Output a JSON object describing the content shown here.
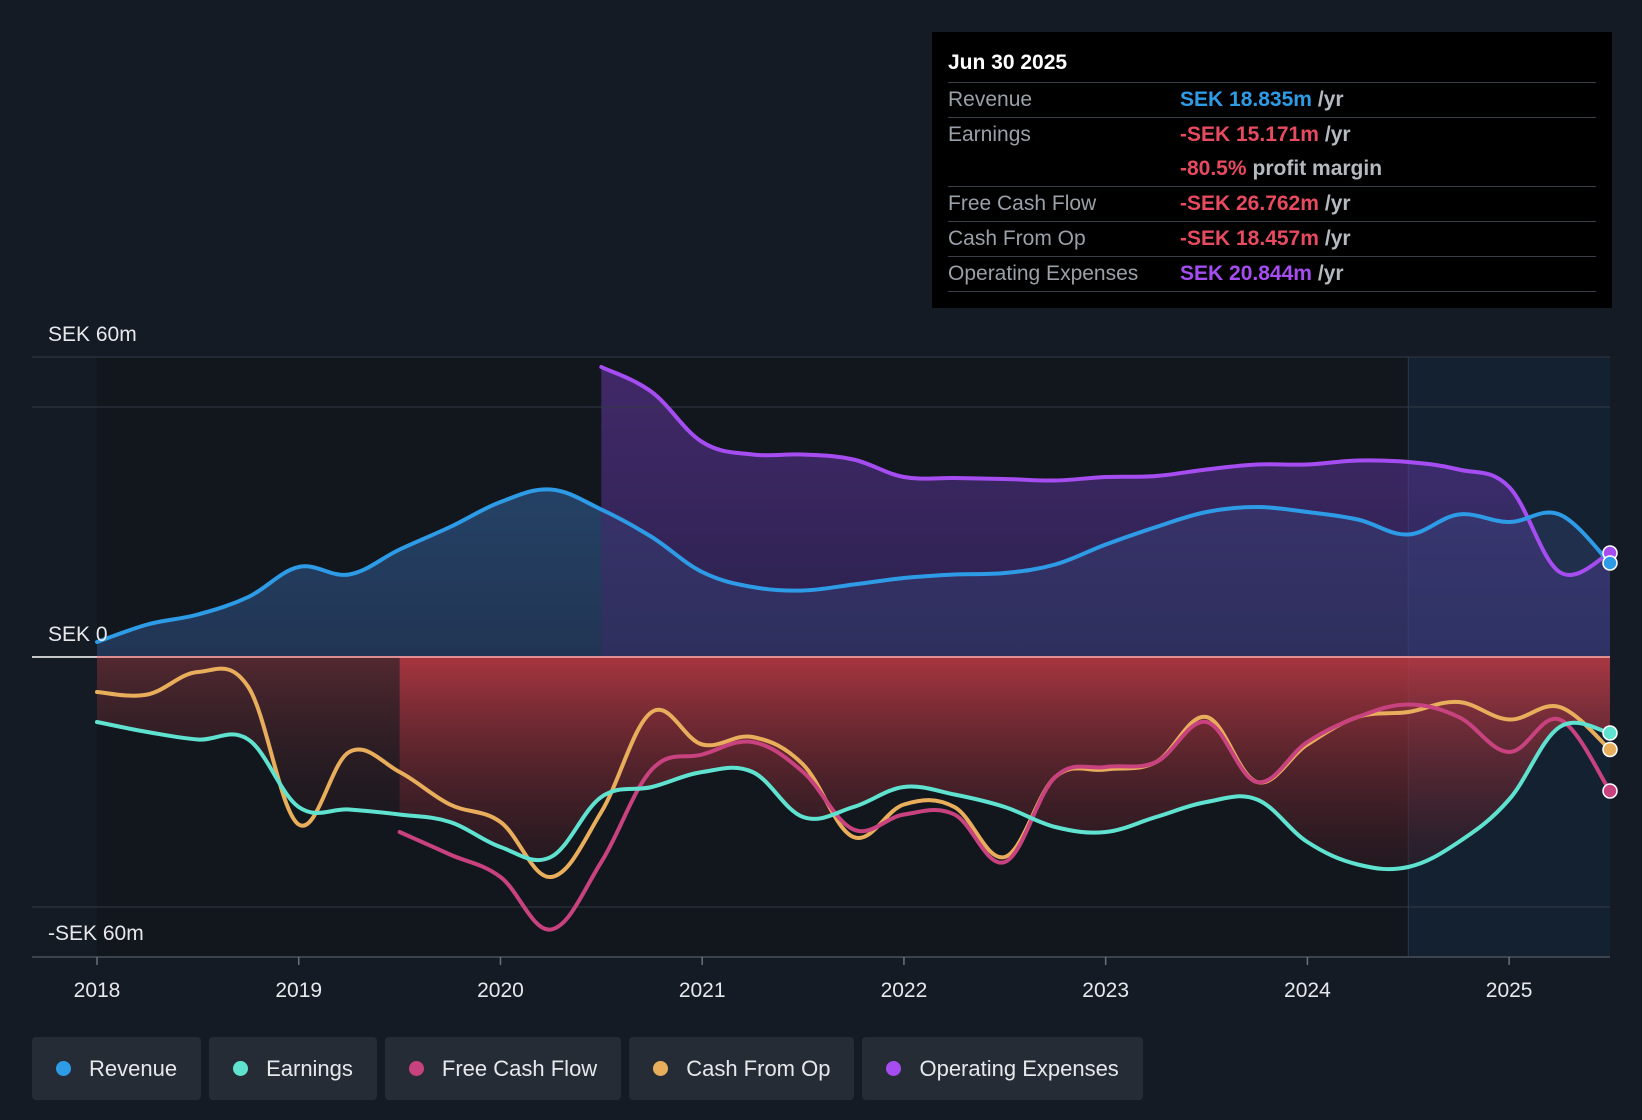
{
  "tooltip": {
    "date": "Jun 30 2025",
    "rows": [
      {
        "label": "Revenue",
        "value": "SEK 18.835m",
        "unit": "/yr",
        "color": "#2e9be6"
      },
      {
        "label": "Earnings",
        "value": "-SEK 15.171m",
        "unit": "/yr",
        "color": "#e84a5f"
      },
      {
        "label": "",
        "value": "-80.5%",
        "unit": "profit margin",
        "color": "#e84a5f"
      },
      {
        "label": "Free Cash Flow",
        "value": "-SEK 26.762m",
        "unit": "/yr",
        "color": "#e84a5f"
      },
      {
        "label": "Cash From Op",
        "value": "-SEK 18.457m",
        "unit": "/yr",
        "color": "#e84a5f"
      },
      {
        "label": "Operating Expenses",
        "value": "SEK 20.844m",
        "unit": "/yr",
        "color": "#a64df2"
      }
    ]
  },
  "legend": [
    {
      "label": "Revenue",
      "color": "#2e9be6"
    },
    {
      "label": "Earnings",
      "color": "#5fe3d0"
    },
    {
      "label": "Free Cash Flow",
      "color": "#c8427f"
    },
    {
      "label": "Cash From Op",
      "color": "#e9ae5b"
    },
    {
      "label": "Operating Expenses",
      "color": "#a64df2"
    }
  ],
  "chart_data": {
    "type": "line",
    "title": "",
    "ylabel_top": "SEK 60m",
    "ylabel_zero": "SEK 0",
    "ylabel_bottom": "-SEK 60m",
    "ylim": [
      -60,
      60
    ],
    "xlim": [
      2018,
      2025.5
    ],
    "x_ticks": [
      "2018",
      "2019",
      "2020",
      "2021",
      "2022",
      "2023",
      "2024",
      "2025"
    ],
    "highlight_start": 2024.5,
    "series": [
      {
        "name": "Revenue",
        "color": "#2e9be6",
        "points": [
          [
            2018,
            3
          ],
          [
            2018.25,
            6.5
          ],
          [
            2018.5,
            8.5
          ],
          [
            2018.75,
            12
          ],
          [
            2019,
            18
          ],
          [
            2019.25,
            16.5
          ],
          [
            2019.5,
            21.5
          ],
          [
            2019.75,
            26
          ],
          [
            2020,
            31
          ],
          [
            2020.25,
            33.5
          ],
          [
            2020.5,
            29.5
          ],
          [
            2020.75,
            24
          ],
          [
            2021,
            17
          ],
          [
            2021.25,
            14
          ],
          [
            2021.5,
            13.3
          ],
          [
            2021.75,
            14.5
          ],
          [
            2022,
            15.8
          ],
          [
            2022.25,
            16.5
          ],
          [
            2022.5,
            16.8
          ],
          [
            2022.75,
            18.5
          ],
          [
            2023,
            22.5
          ],
          [
            2023.25,
            26
          ],
          [
            2023.5,
            29
          ],
          [
            2023.75,
            30
          ],
          [
            2024,
            29
          ],
          [
            2024.25,
            27.5
          ],
          [
            2024.5,
            24.5
          ],
          [
            2024.75,
            28.5
          ],
          [
            2025,
            27
          ],
          [
            2025.25,
            28.5
          ],
          [
            2025.5,
            18.8
          ]
        ]
      },
      {
        "name": "Earnings",
        "color": "#5fe3d0",
        "points": [
          [
            2018,
            -13
          ],
          [
            2018.25,
            -15
          ],
          [
            2018.5,
            -16.5
          ],
          [
            2018.75,
            -16.5
          ],
          [
            2019,
            -30
          ],
          [
            2019.25,
            -30.5
          ],
          [
            2019.5,
            -31.5
          ],
          [
            2019.75,
            -33
          ],
          [
            2020,
            -38
          ],
          [
            2020.25,
            -40
          ],
          [
            2020.5,
            -28
          ],
          [
            2020.75,
            -26
          ],
          [
            2021,
            -23
          ],
          [
            2021.25,
            -23
          ],
          [
            2021.5,
            -32
          ],
          [
            2021.75,
            -30
          ],
          [
            2022,
            -26
          ],
          [
            2022.25,
            -27.5
          ],
          [
            2022.5,
            -30
          ],
          [
            2022.75,
            -34
          ],
          [
            2023,
            -35
          ],
          [
            2023.25,
            -32
          ],
          [
            2023.5,
            -29
          ],
          [
            2023.75,
            -28.5
          ],
          [
            2024,
            -37
          ],
          [
            2024.25,
            -41.5
          ],
          [
            2024.5,
            -42
          ],
          [
            2024.75,
            -37
          ],
          [
            2025,
            -28.5
          ],
          [
            2025.25,
            -14
          ],
          [
            2025.5,
            -15.2
          ]
        ]
      },
      {
        "name": "Free Cash Flow",
        "color": "#c8427f",
        "points": [
          [
            2019.5,
            -35
          ],
          [
            2019.75,
            -39.5
          ],
          [
            2020,
            -44
          ],
          [
            2020.25,
            -54.5
          ],
          [
            2020.5,
            -41
          ],
          [
            2020.75,
            -22.5
          ],
          [
            2021,
            -19.5
          ],
          [
            2021.25,
            -17
          ],
          [
            2021.5,
            -23
          ],
          [
            2021.75,
            -34.5
          ],
          [
            2022,
            -31.5
          ],
          [
            2022.25,
            -31.5
          ],
          [
            2022.5,
            -41
          ],
          [
            2022.75,
            -24
          ],
          [
            2023,
            -22
          ],
          [
            2023.25,
            -21
          ],
          [
            2023.5,
            -13
          ],
          [
            2023.75,
            -25
          ],
          [
            2024,
            -17
          ],
          [
            2024.25,
            -12
          ],
          [
            2024.5,
            -9.5
          ],
          [
            2024.75,
            -12
          ],
          [
            2025,
            -19
          ],
          [
            2025.25,
            -12.5
          ],
          [
            2025.5,
            -26.8
          ]
        ]
      },
      {
        "name": "Cash From Op",
        "color": "#e9ae5b",
        "points": [
          [
            2018,
            -7
          ],
          [
            2018.25,
            -7.5
          ],
          [
            2018.5,
            -3
          ],
          [
            2018.75,
            -6
          ],
          [
            2019,
            -33.5
          ],
          [
            2019.25,
            -19
          ],
          [
            2019.5,
            -23
          ],
          [
            2019.75,
            -29.5
          ],
          [
            2020,
            -33
          ],
          [
            2020.25,
            -44
          ],
          [
            2020.5,
            -31
          ],
          [
            2020.75,
            -11
          ],
          [
            2021,
            -17.5
          ],
          [
            2021.25,
            -16
          ],
          [
            2021.5,
            -21.5
          ],
          [
            2021.75,
            -36
          ],
          [
            2022,
            -29.5
          ],
          [
            2022.25,
            -30
          ],
          [
            2022.5,
            -40
          ],
          [
            2022.75,
            -24
          ],
          [
            2023,
            -22.5
          ],
          [
            2023.25,
            -21
          ],
          [
            2023.5,
            -12
          ],
          [
            2023.75,
            -25
          ],
          [
            2024,
            -17.5
          ],
          [
            2024.25,
            -12
          ],
          [
            2024.5,
            -11
          ],
          [
            2024.75,
            -9
          ],
          [
            2025,
            -12.5
          ],
          [
            2025.25,
            -10
          ],
          [
            2025.5,
            -18.5
          ]
        ]
      },
      {
        "name": "Operating Expenses",
        "color": "#a64df2",
        "points": [
          [
            2020.5,
            58
          ],
          [
            2020.75,
            53
          ],
          [
            2021,
            43
          ],
          [
            2021.25,
            40.5
          ],
          [
            2021.5,
            40.5
          ],
          [
            2021.75,
            39.5
          ],
          [
            2022,
            36
          ],
          [
            2022.25,
            35.8
          ],
          [
            2022.5,
            35.6
          ],
          [
            2022.75,
            35.3
          ],
          [
            2023,
            36
          ],
          [
            2023.25,
            36.2
          ],
          [
            2023.5,
            37.5
          ],
          [
            2023.75,
            38.5
          ],
          [
            2024,
            38.5
          ],
          [
            2024.25,
            39.3
          ],
          [
            2024.5,
            39
          ],
          [
            2024.75,
            37.5
          ],
          [
            2025,
            34
          ],
          [
            2025.25,
            17
          ],
          [
            2025.5,
            20.8
          ]
        ]
      }
    ]
  }
}
